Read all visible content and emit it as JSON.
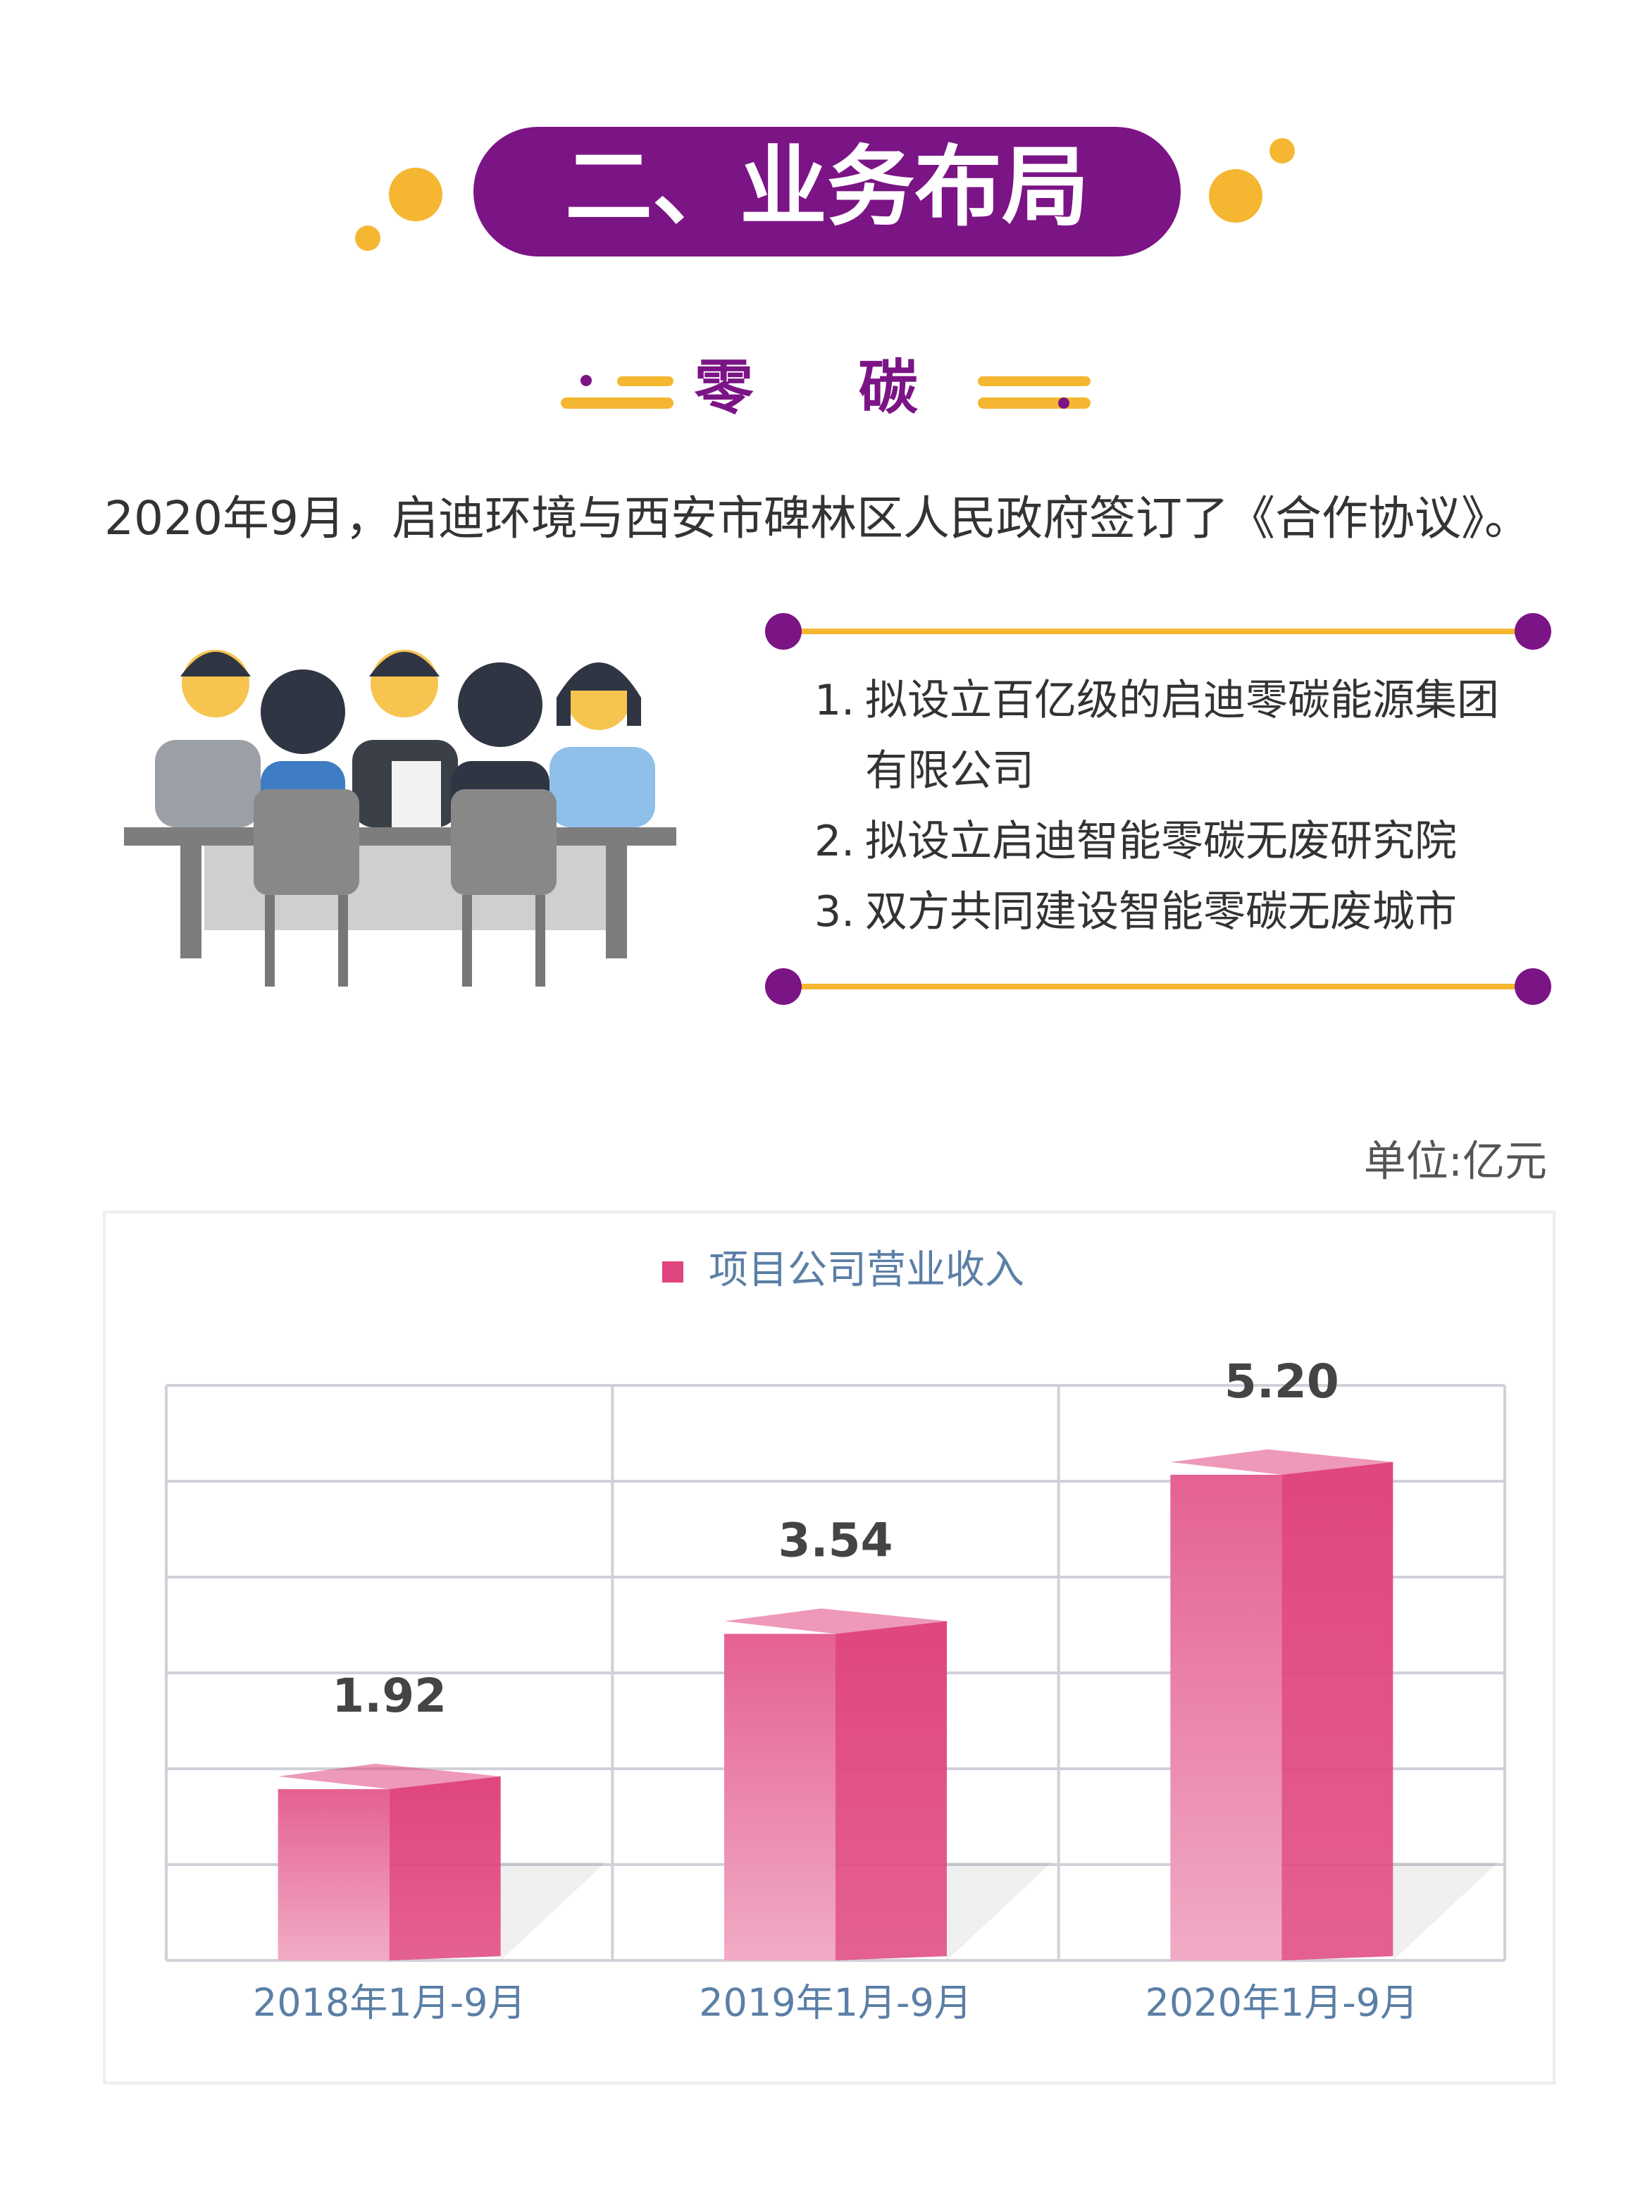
{
  "header": {
    "title": "二、业务布局",
    "subtitle": "零 碳"
  },
  "intro": "2020年9月，启迪环境与西安市碑林区人民政府签订了《合作协议》。",
  "list": [
    {
      "number": "1.",
      "text": "拟设立百亿级的启迪零碳能源集团有限公司"
    },
    {
      "number": "2.",
      "text": "拟设立启迪智能零碳无废研究院"
    },
    {
      "number": "3.",
      "text": "双方共同建设智能零碳无废城市"
    }
  ],
  "unit": "单位:亿元",
  "chart_data": {
    "type": "bar",
    "categories": [
      "2018年1月-9月",
      "2019年1月-9月",
      "2020年1月-9月"
    ],
    "series": [
      {
        "name": "项目公司营业收入",
        "color": "#e0457f",
        "values": [
          1.92,
          3.54,
          5.2
        ],
        "value_labels": [
          "1.92",
          "3.54",
          "5.20"
        ]
      }
    ],
    "ylim": [
      0,
      6
    ],
    "yticks": [
      0,
      1,
      2,
      3,
      4,
      5,
      6
    ],
    "grid": true
  }
}
